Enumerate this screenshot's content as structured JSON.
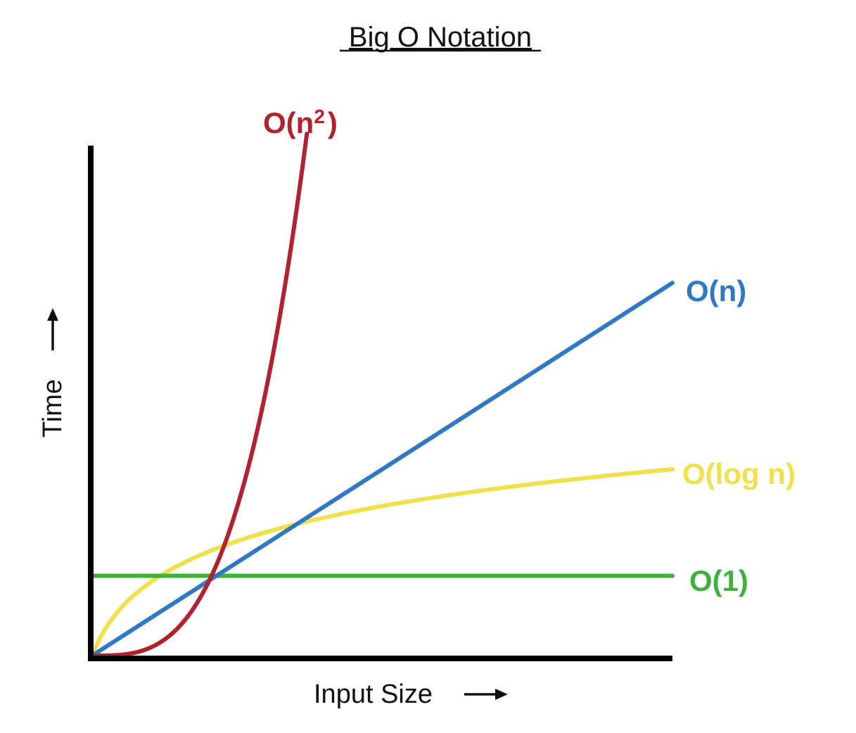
{
  "chart_data": {
    "type": "line",
    "title": "Big O Notation",
    "xlabel": "Input Size",
    "ylabel": "Time",
    "xlim": [
      0,
      10
    ],
    "ylim": [
      0,
      10
    ],
    "grid": false,
    "legend": "inline labels at line ends",
    "series": [
      {
        "name": "O(n²)",
        "label_main": "O(n",
        "label_sup": "2",
        "label_close": ")",
        "color": "#b3202e",
        "function": "quadratic",
        "x_end": 3.7,
        "y_end": 9.8
      },
      {
        "name": "O(n)",
        "color": "#2f78c4",
        "function": "linear",
        "x_end": 10,
        "y_end": 7.0
      },
      {
        "name": "O(log n)",
        "color": "#f0e04a",
        "function": "logarithmic",
        "x_end": 10,
        "y_end": 3.5
      },
      {
        "name": "O(1)",
        "color": "#3db23b",
        "function": "constant",
        "x_end": 10,
        "y_end": 1.5
      }
    ]
  }
}
